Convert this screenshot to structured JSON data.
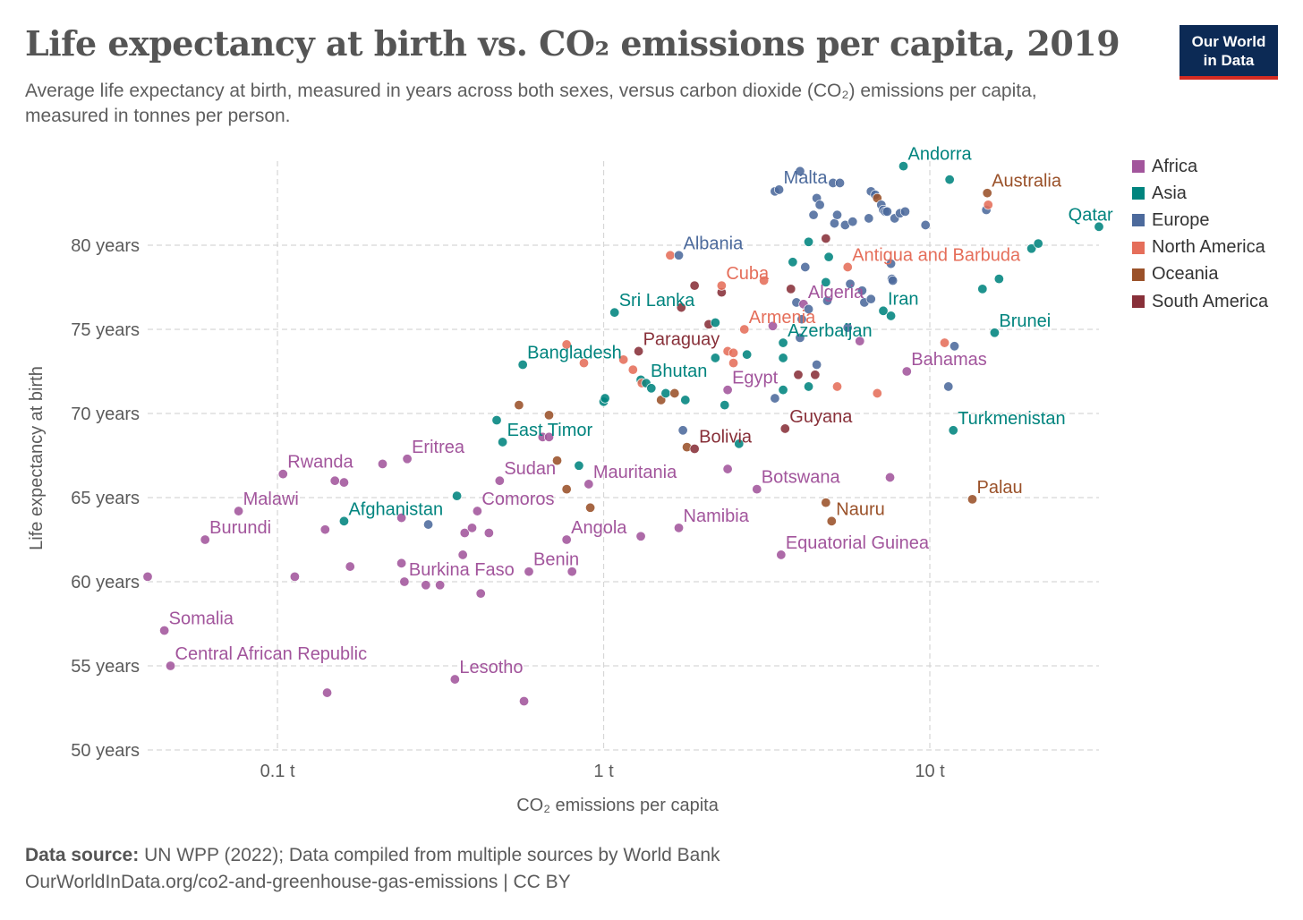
{
  "header": {
    "title": "Life expectancy at birth vs. CO₂ emissions per capita, 2019",
    "subtitle": "Average life expectancy at birth, measured in years across both sexes, versus carbon dioxide (CO₂) emissions per capita, measured in tonnes per person.",
    "logo_line1": "Our World",
    "logo_line2": "in Data"
  },
  "colors": {
    "Africa": "#a2559c",
    "Asia": "#00847e",
    "Europe": "#4c6a9c",
    "North America": "#e56e5a",
    "Oceania": "#9a5129",
    "South America": "#883039",
    "logo_bg": "#0c2a55",
    "logo_accent": "#d42b21"
  },
  "legend": [
    "Africa",
    "Asia",
    "Europe",
    "North America",
    "Oceania",
    "South America"
  ],
  "footer": {
    "source_label": "Data source:",
    "source_text": "UN WPP (2022); Data compiled from multiple sources by World Bank",
    "url_line": "OurWorldInData.org/co2-and-greenhouse-gas-emissions | CC BY"
  },
  "chart_data": {
    "type": "scatter",
    "title": "Life expectancy at birth vs. CO₂ emissions per capita, 2019",
    "xlabel": "CO₂ emissions per capita",
    "ylabel": "Life expectancy at birth",
    "xscale": "log",
    "xlim": [
      0.04,
      33
    ],
    "ylim": [
      50,
      85
    ],
    "x_ticks": [
      {
        "v": 0.1,
        "label": "0.1 t"
      },
      {
        "v": 1,
        "label": "1 t"
      },
      {
        "v": 10,
        "label": "10 t"
      }
    ],
    "y_ticks": [
      {
        "v": 50,
        "label": "50 years"
      },
      {
        "v": 55,
        "label": "55 years"
      },
      {
        "v": 60,
        "label": "60 years"
      },
      {
        "v": 65,
        "label": "65 years"
      },
      {
        "v": 70,
        "label": "70 years"
      },
      {
        "v": 75,
        "label": "75 years"
      },
      {
        "v": 80,
        "label": "80 years"
      }
    ],
    "grid": true,
    "legend_position": "right",
    "points": [
      {
        "x": 0.04,
        "y": 60.3,
        "c": "Africa"
      },
      {
        "x": 0.045,
        "y": 57.1,
        "c": "Africa",
        "label": "Somalia"
      },
      {
        "x": 0.047,
        "y": 55.0,
        "c": "Africa",
        "label": "Central African Republic"
      },
      {
        "x": 0.06,
        "y": 62.5,
        "c": "Africa",
        "label": "Burundi"
      },
      {
        "x": 0.076,
        "y": 64.2,
        "c": "Africa",
        "label": "Malawi"
      },
      {
        "x": 0.104,
        "y": 66.4,
        "c": "Africa",
        "label": "Rwanda"
      },
      {
        "x": 0.113,
        "y": 60.3,
        "c": "Africa"
      },
      {
        "x": 0.14,
        "y": 63.1,
        "c": "Africa"
      },
      {
        "x": 0.142,
        "y": 53.4,
        "c": "Africa"
      },
      {
        "x": 0.15,
        "y": 66.0,
        "c": "Africa"
      },
      {
        "x": 0.16,
        "y": 65.9,
        "c": "Africa"
      },
      {
        "x": 0.16,
        "y": 63.6,
        "c": "Asia",
        "label": "Afghanistan"
      },
      {
        "x": 0.167,
        "y": 60.9,
        "c": "Africa"
      },
      {
        "x": 0.21,
        "y": 67.0,
        "c": "Africa"
      },
      {
        "x": 0.24,
        "y": 63.8,
        "c": "Africa"
      },
      {
        "x": 0.24,
        "y": 61.1,
        "c": "Africa"
      },
      {
        "x": 0.245,
        "y": 60.0,
        "c": "Africa",
        "label": "Burkina Faso"
      },
      {
        "x": 0.25,
        "y": 67.3,
        "c": "Africa",
        "label": "Eritrea"
      },
      {
        "x": 0.285,
        "y": 59.8,
        "c": "Africa"
      },
      {
        "x": 0.29,
        "y": 63.4,
        "c": "Europe"
      },
      {
        "x": 0.315,
        "y": 59.8,
        "c": "Africa"
      },
      {
        "x": 0.35,
        "y": 54.2,
        "c": "Africa",
        "label": "Lesotho"
      },
      {
        "x": 0.355,
        "y": 65.1,
        "c": "Asia"
      },
      {
        "x": 0.37,
        "y": 61.6,
        "c": "Africa"
      },
      {
        "x": 0.375,
        "y": 62.9,
        "c": "Africa"
      },
      {
        "x": 0.395,
        "y": 63.2,
        "c": "Africa"
      },
      {
        "x": 0.41,
        "y": 64.2,
        "c": "Africa",
        "label": "Comoros"
      },
      {
        "x": 0.42,
        "y": 59.3,
        "c": "Africa"
      },
      {
        "x": 0.445,
        "y": 62.9,
        "c": "Africa"
      },
      {
        "x": 0.47,
        "y": 69.6,
        "c": "Asia"
      },
      {
        "x": 0.48,
        "y": 66.0,
        "c": "Africa",
        "label": "Sudan"
      },
      {
        "x": 0.49,
        "y": 68.3,
        "c": "Asia",
        "label": "East Timor"
      },
      {
        "x": 0.55,
        "y": 70.5,
        "c": "Oceania"
      },
      {
        "x": 0.565,
        "y": 72.9,
        "c": "Asia",
        "label": "Bangladesh"
      },
      {
        "x": 0.57,
        "y": 52.9,
        "c": "Africa"
      },
      {
        "x": 0.59,
        "y": 60.6,
        "c": "Africa",
        "label": "Benin"
      },
      {
        "x": 0.65,
        "y": 68.6,
        "c": "Africa"
      },
      {
        "x": 0.68,
        "y": 68.6,
        "c": "Africa"
      },
      {
        "x": 0.68,
        "y": 69.9,
        "c": "Oceania"
      },
      {
        "x": 0.72,
        "y": 67.2,
        "c": "Oceania"
      },
      {
        "x": 0.77,
        "y": 65.5,
        "c": "Oceania"
      },
      {
        "x": 0.77,
        "y": 62.5,
        "c": "Africa",
        "label": "Angola"
      },
      {
        "x": 0.77,
        "y": 74.1,
        "c": "North America"
      },
      {
        "x": 0.8,
        "y": 60.6,
        "c": "Africa"
      },
      {
        "x": 0.84,
        "y": 66.9,
        "c": "Asia"
      },
      {
        "x": 0.87,
        "y": 73.0,
        "c": "North America"
      },
      {
        "x": 0.9,
        "y": 65.8,
        "c": "Africa",
        "label": "Mauritania"
      },
      {
        "x": 0.91,
        "y": 64.4,
        "c": "Oceania"
      },
      {
        "x": 1.0,
        "y": 70.7,
        "c": "Asia"
      },
      {
        "x": 1.01,
        "y": 70.9,
        "c": "Asia"
      },
      {
        "x": 1.08,
        "y": 76.0,
        "c": "Asia",
        "label": "Sri Lanka"
      },
      {
        "x": 1.15,
        "y": 73.2,
        "c": "North America"
      },
      {
        "x": 1.23,
        "y": 72.6,
        "c": "North America"
      },
      {
        "x": 1.28,
        "y": 73.7,
        "c": "South America",
        "label": "Paraguay"
      },
      {
        "x": 1.3,
        "y": 72.0,
        "c": "Asia"
      },
      {
        "x": 1.31,
        "y": 71.8,
        "c": "North America"
      },
      {
        "x": 1.3,
        "y": 62.7,
        "c": "Africa"
      },
      {
        "x": 1.35,
        "y": 71.8,
        "c": "Asia",
        "label": "Bhutan"
      },
      {
        "x": 1.4,
        "y": 71.5,
        "c": "Asia"
      },
      {
        "x": 1.5,
        "y": 70.8,
        "c": "Oceania"
      },
      {
        "x": 1.55,
        "y": 71.2,
        "c": "Asia"
      },
      {
        "x": 1.6,
        "y": 79.4,
        "c": "North America"
      },
      {
        "x": 1.65,
        "y": 71.2,
        "c": "Oceania"
      },
      {
        "x": 1.7,
        "y": 79.4,
        "c": "Europe",
        "label": "Albania"
      },
      {
        "x": 1.7,
        "y": 63.2,
        "c": "Africa",
        "label": "Namibia"
      },
      {
        "x": 1.73,
        "y": 76.3,
        "c": "South America"
      },
      {
        "x": 1.75,
        "y": 69.0,
        "c": "Europe"
      },
      {
        "x": 1.78,
        "y": 70.8,
        "c": "Asia"
      },
      {
        "x": 1.8,
        "y": 68.0,
        "c": "Oceania"
      },
      {
        "x": 1.9,
        "y": 67.9,
        "c": "South America",
        "label": "Bolivia"
      },
      {
        "x": 1.9,
        "y": 77.6,
        "c": "South America"
      },
      {
        "x": 2.1,
        "y": 75.3,
        "c": "South America"
      },
      {
        "x": 2.2,
        "y": 75.4,
        "c": "Asia"
      },
      {
        "x": 2.2,
        "y": 73.3,
        "c": "Asia"
      },
      {
        "x": 2.3,
        "y": 77.2,
        "c": "South America"
      },
      {
        "x": 2.3,
        "y": 77.6,
        "c": "North America",
        "label": "Cuba"
      },
      {
        "x": 2.35,
        "y": 70.5,
        "c": "Asia"
      },
      {
        "x": 2.4,
        "y": 71.4,
        "c": "Africa",
        "label": "Egypt"
      },
      {
        "x": 2.4,
        "y": 73.7,
        "c": "North America"
      },
      {
        "x": 2.4,
        "y": 66.7,
        "c": "Africa"
      },
      {
        "x": 2.5,
        "y": 73.0,
        "c": "North America"
      },
      {
        "x": 2.5,
        "y": 73.6,
        "c": "North America"
      },
      {
        "x": 2.6,
        "y": 68.2,
        "c": "Asia"
      },
      {
        "x": 2.7,
        "y": 75.0,
        "c": "North America",
        "label": "Armenia"
      },
      {
        "x": 2.75,
        "y": 73.5,
        "c": "Asia"
      },
      {
        "x": 2.95,
        "y": 65.5,
        "c": "Africa",
        "label": "Botswana"
      },
      {
        "x": 3.1,
        "y": 77.9,
        "c": "North America"
      },
      {
        "x": 3.3,
        "y": 75.2,
        "c": "Africa"
      },
      {
        "x": 3.35,
        "y": 70.9,
        "c": "Europe"
      },
      {
        "x": 3.35,
        "y": 83.2,
        "c": "Europe"
      },
      {
        "x": 3.45,
        "y": 83.3,
        "c": "Europe",
        "label": "Malta"
      },
      {
        "x": 3.5,
        "y": 61.6,
        "c": "Africa",
        "label": "Equatorial Guinea"
      },
      {
        "x": 3.55,
        "y": 74.2,
        "c": "Asia",
        "label": "Azerbaijan"
      },
      {
        "x": 3.55,
        "y": 73.3,
        "c": "Asia"
      },
      {
        "x": 3.6,
        "y": 69.1,
        "c": "South America",
        "label": "Guyana"
      },
      {
        "x": 3.55,
        "y": 71.4,
        "c": "Asia"
      },
      {
        "x": 3.75,
        "y": 77.4,
        "c": "South America"
      },
      {
        "x": 3.8,
        "y": 79.0,
        "c": "Asia"
      },
      {
        "x": 3.9,
        "y": 76.6,
        "c": "Europe"
      },
      {
        "x": 3.95,
        "y": 72.3,
        "c": "South America"
      },
      {
        "x": 4.0,
        "y": 84.4,
        "c": "Europe"
      },
      {
        "x": 4.0,
        "y": 74.5,
        "c": "Europe"
      },
      {
        "x": 4.05,
        "y": 75.6,
        "c": "Europe"
      },
      {
        "x": 4.1,
        "y": 76.5,
        "c": "Africa",
        "label": "Algeria"
      },
      {
        "x": 4.15,
        "y": 78.7,
        "c": "Europe"
      },
      {
        "x": 4.25,
        "y": 76.2,
        "c": "Europe"
      },
      {
        "x": 4.25,
        "y": 80.2,
        "c": "Asia"
      },
      {
        "x": 4.25,
        "y": 71.6,
        "c": "Asia"
      },
      {
        "x": 4.4,
        "y": 81.8,
        "c": "Europe"
      },
      {
        "x": 4.5,
        "y": 82.8,
        "c": "Europe"
      },
      {
        "x": 4.45,
        "y": 72.3,
        "c": "South America"
      },
      {
        "x": 4.5,
        "y": 72.9,
        "c": "Europe"
      },
      {
        "x": 4.6,
        "y": 82.4,
        "c": "Europe"
      },
      {
        "x": 4.8,
        "y": 80.4,
        "c": "South America"
      },
      {
        "x": 4.8,
        "y": 77.8,
        "c": "Asia"
      },
      {
        "x": 4.8,
        "y": 64.7,
        "c": "Oceania"
      },
      {
        "x": 4.85,
        "y": 76.7,
        "c": "Europe"
      },
      {
        "x": 4.9,
        "y": 79.3,
        "c": "Asia"
      },
      {
        "x": 5.0,
        "y": 63.6,
        "c": "Oceania",
        "label": "Nauru"
      },
      {
        "x": 5.05,
        "y": 83.7,
        "c": "Europe"
      },
      {
        "x": 5.1,
        "y": 81.3,
        "c": "Europe"
      },
      {
        "x": 5.2,
        "y": 71.6,
        "c": "North America"
      },
      {
        "x": 5.2,
        "y": 81.8,
        "c": "Europe"
      },
      {
        "x": 5.3,
        "y": 83.7,
        "c": "Europe"
      },
      {
        "x": 5.5,
        "y": 81.2,
        "c": "Europe"
      },
      {
        "x": 5.6,
        "y": 75.1,
        "c": "Europe"
      },
      {
        "x": 5.6,
        "y": 78.7,
        "c": "North America",
        "label": "Antigua and Barbuda"
      },
      {
        "x": 5.7,
        "y": 77.7,
        "c": "Europe"
      },
      {
        "x": 5.8,
        "y": 81.4,
        "c": "Europe"
      },
      {
        "x": 6.1,
        "y": 74.3,
        "c": "Africa"
      },
      {
        "x": 6.2,
        "y": 77.3,
        "c": "Europe"
      },
      {
        "x": 6.3,
        "y": 76.6,
        "c": "Europe"
      },
      {
        "x": 6.5,
        "y": 81.6,
        "c": "Europe"
      },
      {
        "x": 6.6,
        "y": 76.8,
        "c": "Europe"
      },
      {
        "x": 6.6,
        "y": 83.2,
        "c": "Europe"
      },
      {
        "x": 6.8,
        "y": 83.0,
        "c": "Europe"
      },
      {
        "x": 6.9,
        "y": 82.8,
        "c": "Oceania"
      },
      {
        "x": 6.9,
        "y": 71.2,
        "c": "North America"
      },
      {
        "x": 7.1,
        "y": 82.4,
        "c": "Europe"
      },
      {
        "x": 7.2,
        "y": 82.1,
        "c": "Europe"
      },
      {
        "x": 7.2,
        "y": 76.1,
        "c": "Asia",
        "label": "Iran"
      },
      {
        "x": 7.3,
        "y": 82.0,
        "c": "Europe"
      },
      {
        "x": 7.4,
        "y": 82.0,
        "c": "Europe"
      },
      {
        "x": 7.55,
        "y": 66.2,
        "c": "Africa"
      },
      {
        "x": 7.6,
        "y": 78.9,
        "c": "Europe"
      },
      {
        "x": 7.6,
        "y": 75.8,
        "c": "Asia"
      },
      {
        "x": 7.65,
        "y": 78.0,
        "c": "Europe"
      },
      {
        "x": 7.7,
        "y": 77.9,
        "c": "Europe"
      },
      {
        "x": 7.8,
        "y": 81.6,
        "c": "Europe"
      },
      {
        "x": 8.1,
        "y": 81.9,
        "c": "Europe"
      },
      {
        "x": 8.3,
        "y": 84.7,
        "c": "Asia",
        "label": "Andorra"
      },
      {
        "x": 8.4,
        "y": 82.0,
        "c": "Europe"
      },
      {
        "x": 8.5,
        "y": 72.5,
        "c": "Africa",
        "label": "Bahamas"
      },
      {
        "x": 9.7,
        "y": 81.2,
        "c": "Europe"
      },
      {
        "x": 11.4,
        "y": 71.6,
        "c": "Europe"
      },
      {
        "x": 11.5,
        "y": 83.9,
        "c": "Asia"
      },
      {
        "x": 11.8,
        "y": 69.0,
        "c": "Asia",
        "label": "Turkmenistan"
      },
      {
        "x": 11.1,
        "y": 74.2,
        "c": "North America"
      },
      {
        "x": 11.9,
        "y": 74.0,
        "c": "Europe"
      },
      {
        "x": 13.5,
        "y": 64.9,
        "c": "Oceania",
        "label": "Palau"
      },
      {
        "x": 14.5,
        "y": 77.4,
        "c": "Asia"
      },
      {
        "x": 14.9,
        "y": 82.1,
        "c": "Europe"
      },
      {
        "x": 15.0,
        "y": 83.1,
        "c": "Oceania",
        "label": "Australia"
      },
      {
        "x": 15.1,
        "y": 82.4,
        "c": "North America"
      },
      {
        "x": 15.8,
        "y": 74.8,
        "c": "Asia",
        "label": "Brunei"
      },
      {
        "x": 16.3,
        "y": 78.0,
        "c": "Asia"
      },
      {
        "x": 20.5,
        "y": 79.8,
        "c": "Asia"
      },
      {
        "x": 21.5,
        "y": 80.1,
        "c": "Asia"
      },
      {
        "x": 33.0,
        "y": 81.1,
        "c": "Asia",
        "label": "Qatar"
      }
    ]
  }
}
